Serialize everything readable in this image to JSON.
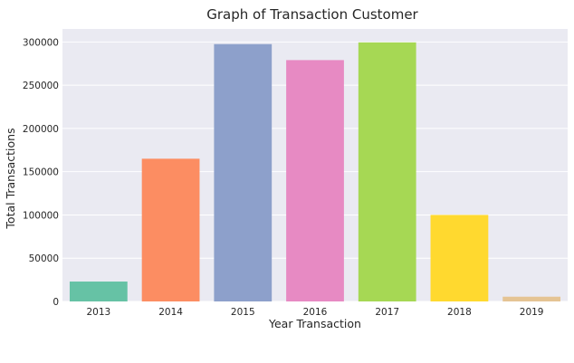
{
  "chart_data": {
    "type": "bar",
    "title": "Graph of Transaction Customer",
    "xlabel": "Year Transaction",
    "ylabel": "Total Transactions",
    "categories": [
      "2013",
      "2014",
      "2015",
      "2016",
      "2017",
      "2018",
      "2019"
    ],
    "values": [
      23000,
      165000,
      297500,
      279000,
      299500,
      100000,
      5500
    ],
    "colors": [
      "#66c2a5",
      "#fc8d62",
      "#8da0cb",
      "#e78ac3",
      "#a6d854",
      "#ffd92f",
      "#e5c494"
    ],
    "ylim": [
      0,
      315000
    ],
    "yticks": [
      0,
      50000,
      100000,
      150000,
      200000,
      250000,
      300000
    ],
    "ytick_labels": [
      "0",
      "50000",
      "100000",
      "150000",
      "200000",
      "250000",
      "300000"
    ],
    "grid": true,
    "background": "#eaeaf2"
  }
}
